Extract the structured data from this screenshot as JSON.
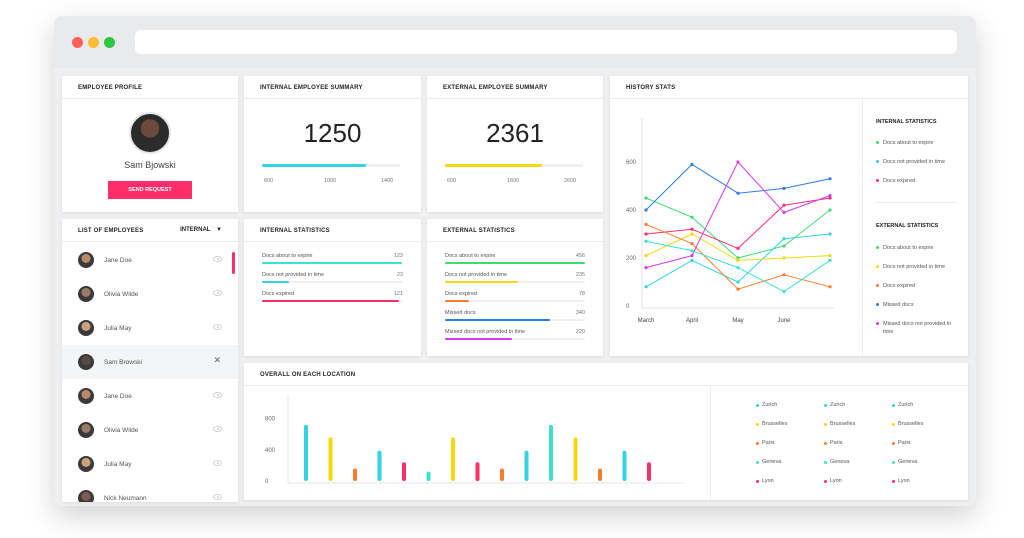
{
  "colors": {
    "cyan": "#33d3e6",
    "green": "#3ddc6f",
    "yellow": "#f5d90f",
    "orange": "#ff7a2e",
    "red": "#ff2d6a",
    "blue": "#2d7de3",
    "purple": "#d23cf0",
    "pink": "#ff2d6a",
    "teal": "#3fe0d0"
  },
  "profile": {
    "title": "Employee profile",
    "name": "Sam Bjowski",
    "button": "SEND REQUEST",
    "avatar_icon": "user-avatar"
  },
  "internal_summary": {
    "title": "Internal employee summary",
    "value": "1250",
    "progress": 0.75,
    "ticks": [
      "600",
      "1000",
      "1400"
    ]
  },
  "external_summary": {
    "title": "External employee summary",
    "value": "2361",
    "progress": 0.7,
    "ticks": [
      "600",
      "1600",
      "2600"
    ]
  },
  "employees": {
    "title": "List of employees",
    "filter": "INTERNAL",
    "rows": [
      {
        "name": "Jane Doe",
        "icon": "eye-icon"
      },
      {
        "name": "Olivia Wilde",
        "icon": "eye-icon"
      },
      {
        "name": "Julia May",
        "icon": "eye-icon"
      },
      {
        "name": "Sam Browski",
        "icon": "close-icon"
      },
      {
        "name": "Jane Doe",
        "icon": "eye-icon"
      },
      {
        "name": "Olivia Wilde",
        "icon": "eye-icon"
      },
      {
        "name": "Julia May",
        "icon": "eye-icon"
      },
      {
        "name": "Nick Neumann",
        "icon": "eye-icon"
      }
    ]
  },
  "internal_stats": {
    "title": "Internal statistics",
    "rows": [
      {
        "label": "Docs about to expire",
        "value": "123",
        "pct": 1.0
      },
      {
        "label": "Docs not provided in time",
        "value": "23",
        "pct": 0.19
      },
      {
        "label": "Docs expired",
        "value": "121",
        "pct": 0.98
      }
    ]
  },
  "external_stats": {
    "title": "External statistics",
    "rows": [
      {
        "label": "Docs about to expire",
        "value": "456",
        "pct": 1.0
      },
      {
        "label": "Docs not provided in time",
        "value": "235",
        "pct": 0.52
      },
      {
        "label": "Docs expired",
        "value": "78",
        "pct": 0.17
      },
      {
        "label": "Missed docs",
        "value": "340",
        "pct": 0.75
      },
      {
        "label": "Missed docs not provided in time",
        "value": "220",
        "pct": 0.48
      }
    ]
  },
  "history": {
    "title": "History stats",
    "internal_title": "Internal statistics",
    "internal_legend": [
      "Docs about to expire",
      "Docs not provided in time",
      "Docs expired"
    ],
    "external_title": "External statistics",
    "external_legend": [
      "Docs about to expire",
      "Docs not provided in time",
      "Docs expired",
      "Missed docs",
      "Missed docs not provided in time"
    ]
  },
  "locations": {
    "title": "Overall on each location",
    "legend_columns": [
      [
        "Zurich",
        "Brusselles",
        "Paris",
        "Geneva",
        "Lyon"
      ],
      [
        "Zurich",
        "Brusselles",
        "Paris",
        "Geneva",
        "Lyon"
      ],
      [
        "Zurich",
        "Brusselles",
        "Paris",
        "Geneva",
        "Lyon"
      ]
    ]
  },
  "chart_data": [
    {
      "type": "line",
      "x": [
        "March",
        "April",
        "May",
        "June",
        ""
      ],
      "yticks": [
        0,
        200,
        400,
        600
      ],
      "ylim": [
        0,
        700
      ],
      "series": [
        {
          "color": "#3ddc6f",
          "values": [
            450,
            370,
            200,
            250,
            400
          ]
        },
        {
          "color": "#33d3e6",
          "values": [
            80,
            190,
            100,
            280,
            300
          ]
        },
        {
          "color": "#ff2d6a",
          "values": [
            300,
            320,
            240,
            420,
            450
          ]
        },
        {
          "color": "#f5d90f",
          "values": [
            210,
            300,
            190,
            200,
            210
          ]
        },
        {
          "color": "#ff7a2e",
          "values": [
            340,
            260,
            70,
            130,
            80
          ]
        },
        {
          "color": "#2d7de3",
          "values": [
            400,
            590,
            470,
            490,
            530
          ]
        },
        {
          "color": "#d23cf0",
          "values": [
            160,
            210,
            600,
            390,
            460
          ]
        },
        {
          "color": "#3fe0d0",
          "values": [
            270,
            230,
            160,
            60,
            190
          ]
        }
      ]
    },
    {
      "type": "bar",
      "yticks": [
        0,
        400,
        800
      ],
      "ylim": [
        0,
        1000
      ],
      "values": [
        720,
        560,
        160,
        390,
        240,
        120,
        560,
        240,
        160,
        390,
        720,
        560,
        160,
        390,
        240
      ],
      "colors": [
        "#33d3e6",
        "#f5d90f",
        "#ff7a2e",
        "#33d3e6",
        "#ff2d6a",
        "#3fe0d0",
        "#f5d90f",
        "#ff2d6a",
        "#ff7a2e",
        "#33d3e6",
        "#3fe0d0",
        "#f5d90f",
        "#ff7a2e",
        "#33d3e6",
        "#ff2d6a"
      ]
    }
  ]
}
